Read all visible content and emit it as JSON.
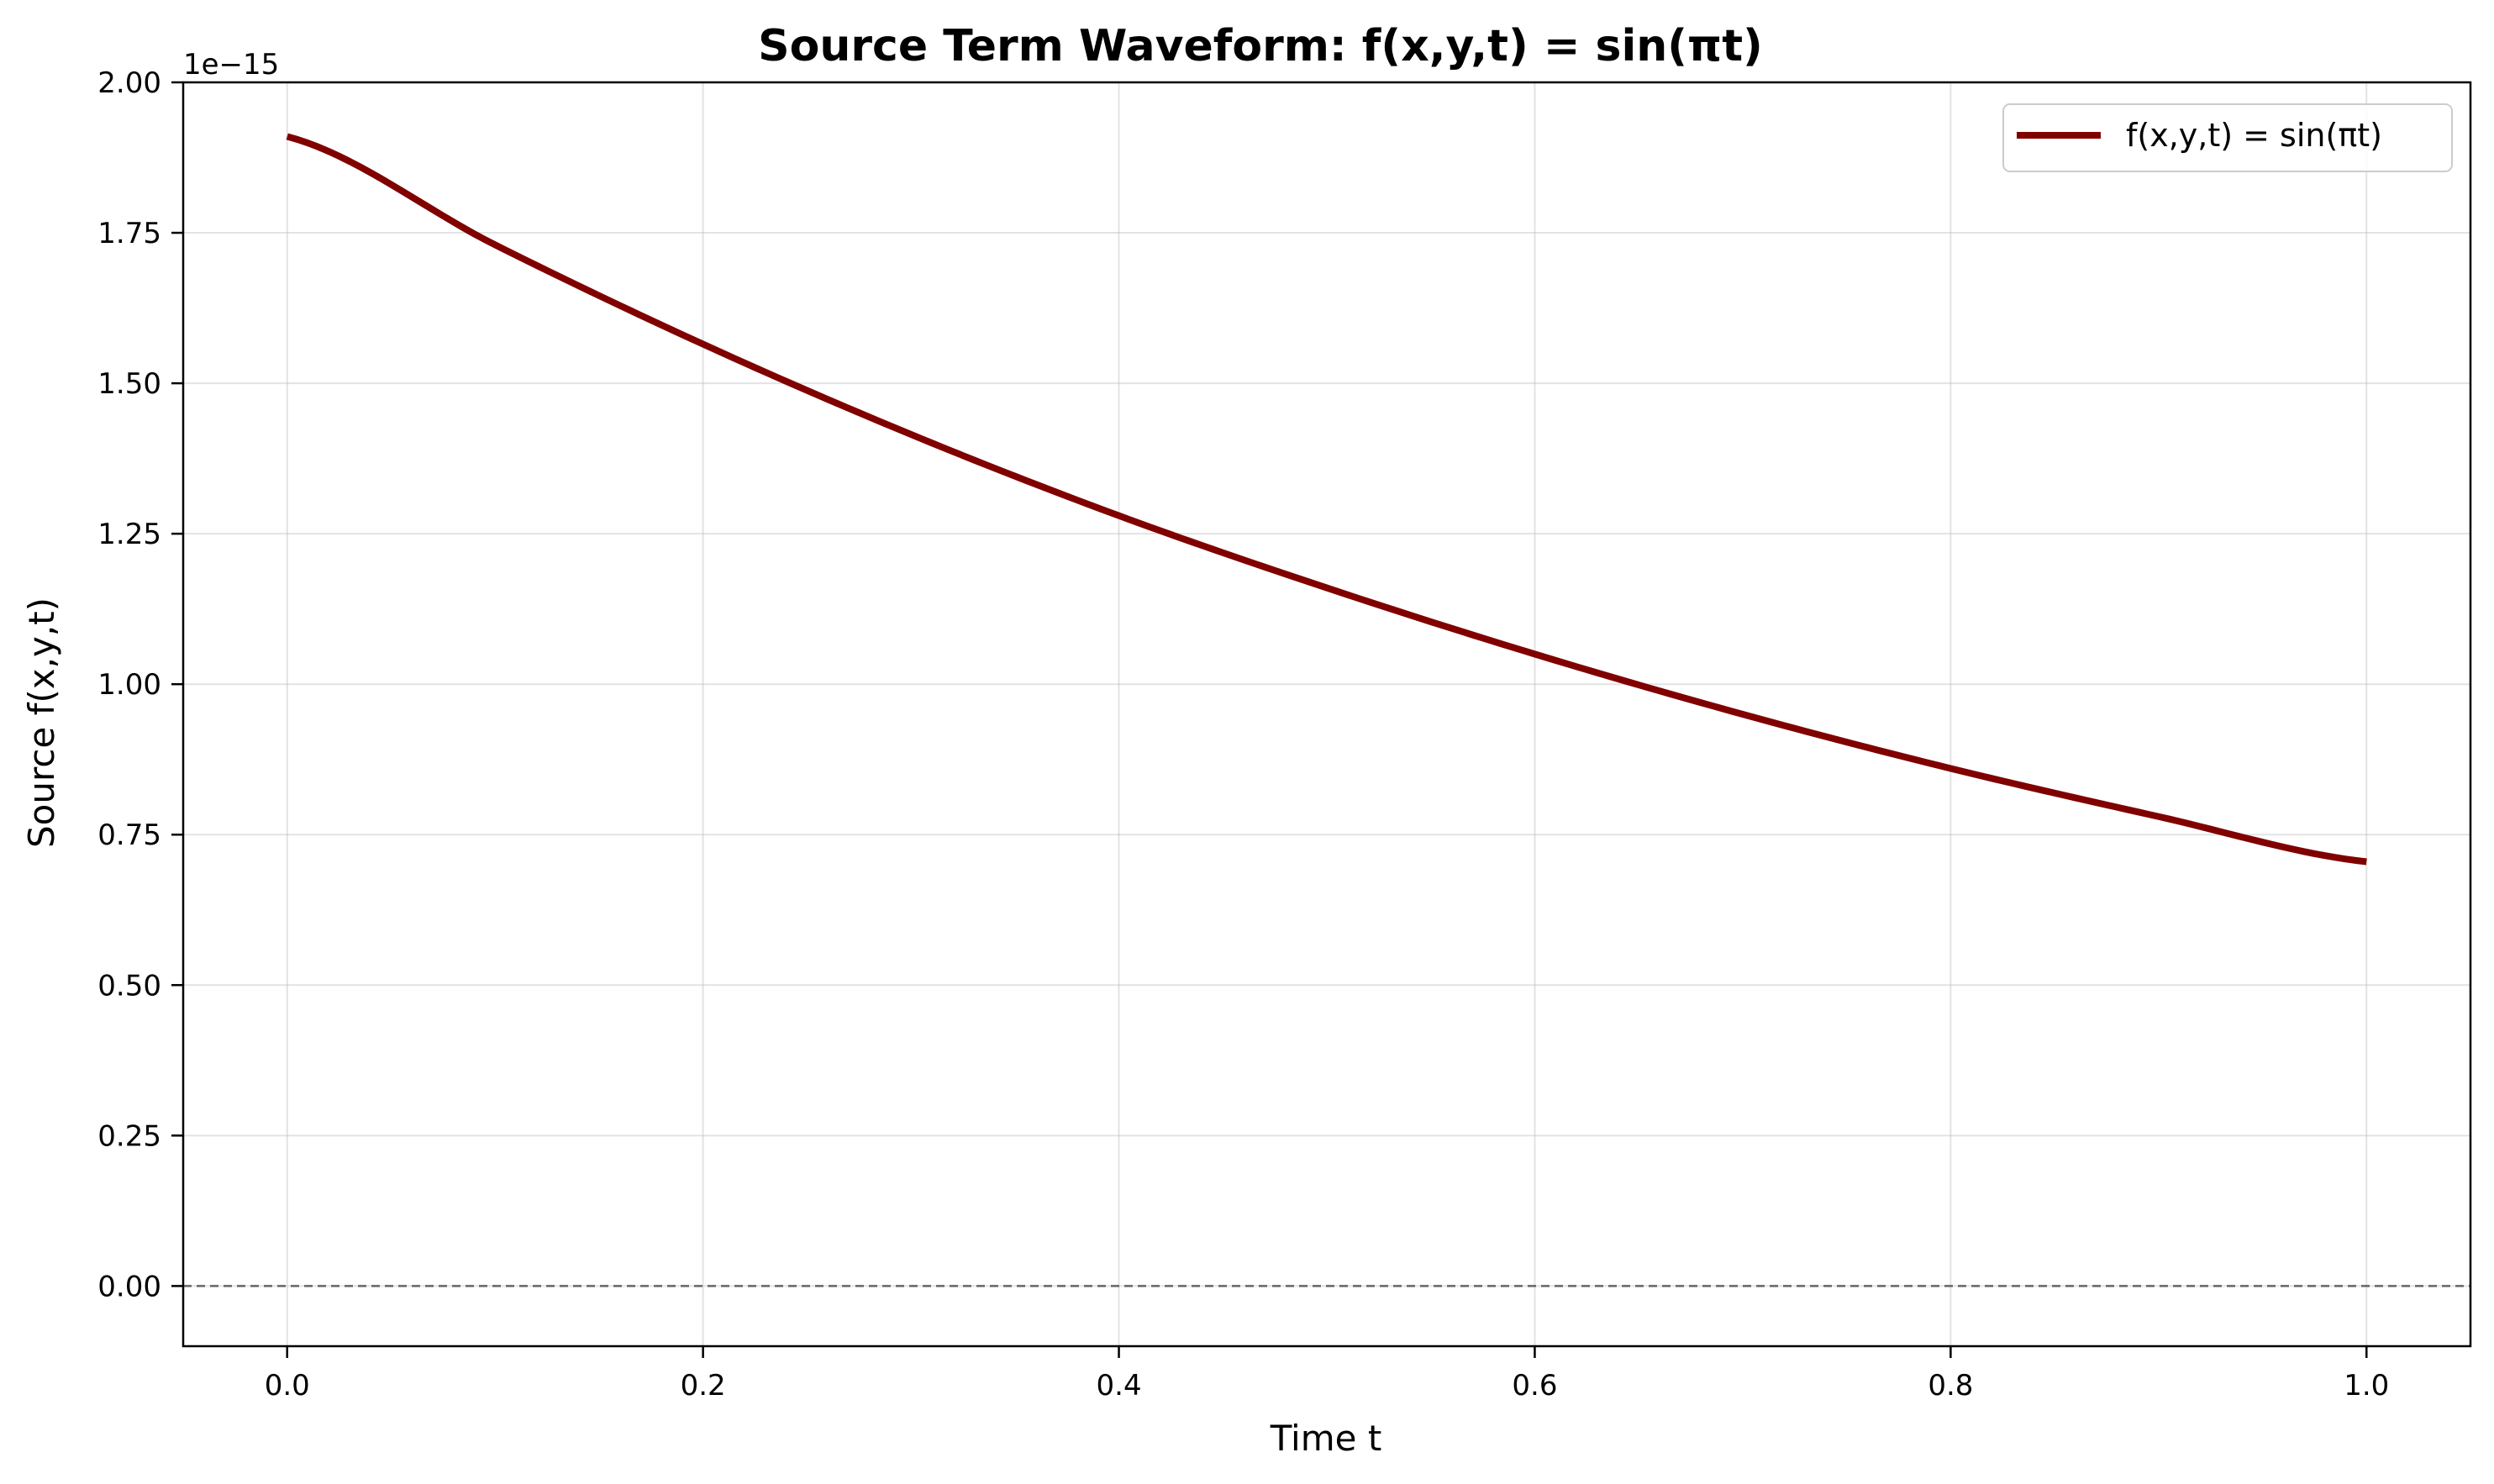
{
  "chart_data": {
    "type": "line",
    "title": "Source Term Waveform: f(x,y,t) = sin(πt)",
    "xlabel": "Time t",
    "ylabel": "Source f(x,y,t)",
    "y_offset_label": "1e−15",
    "xlim": [
      -0.05,
      1.05
    ],
    "ylim": [
      -0.1,
      2.0
    ],
    "y_scale_factor": 1e-15,
    "x_ticks": [
      0.0,
      0.2,
      0.4,
      0.6,
      0.8,
      1.0
    ],
    "x_tick_labels": [
      "0.0",
      "0.2",
      "0.4",
      "0.6",
      "0.8",
      "1.0"
    ],
    "y_ticks": [
      0.0,
      0.25,
      0.5,
      0.75,
      1.0,
      1.25,
      1.5,
      1.75,
      2.0
    ],
    "y_tick_labels": [
      "0.00",
      "0.25",
      "0.50",
      "0.75",
      "1.00",
      "1.25",
      "1.50",
      "1.75",
      "2.00"
    ],
    "grid": true,
    "legend_position": "top-right",
    "reference_line": {
      "y": 0.0,
      "style": "dashed",
      "color": "#666666"
    },
    "series": [
      {
        "name": "f(x,y,t) = sin(πt)",
        "color": "#800000",
        "x": [
          0.0,
          0.1,
          0.2,
          0.3,
          0.4,
          0.5,
          0.6,
          0.7,
          0.8,
          0.9,
          1.0
        ],
        "y": [
          1.91,
          1.73,
          1.565,
          1.415,
          1.28,
          1.16,
          1.05,
          0.95,
          0.86,
          0.78,
          0.705
        ]
      }
    ]
  }
}
